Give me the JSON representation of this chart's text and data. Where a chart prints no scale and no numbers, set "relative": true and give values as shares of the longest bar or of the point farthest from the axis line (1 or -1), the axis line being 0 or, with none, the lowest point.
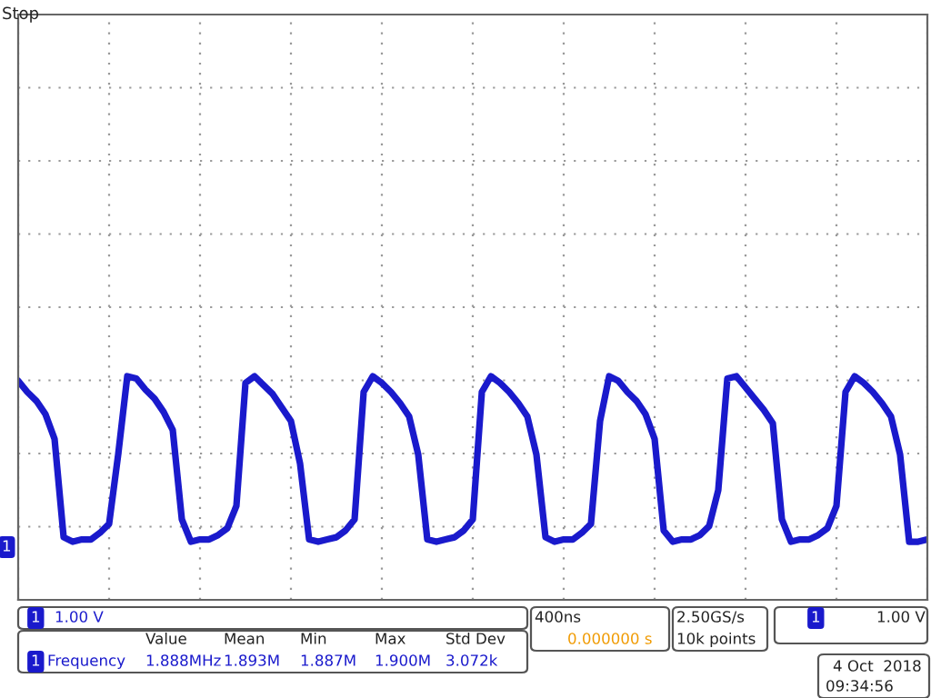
{
  "chart_data": {
    "type": "line",
    "title": "Stop",
    "relative": true,
    "grid": true,
    "legend": false,
    "marker": "none",
    "line_style": "solid",
    "categories": [
      null,
      null,
      null,
      null,
      null,
      null,
      null,
      null,
      null,
      null,
      null,
      null,
      null,
      null,
      null,
      null,
      null,
      null,
      null,
      null,
      null,
      null,
      null,
      null,
      null,
      null,
      null,
      null,
      null,
      null,
      null,
      null,
      null,
      null,
      null,
      null,
      null,
      null,
      null,
      null,
      null,
      null,
      null,
      null,
      null,
      null,
      null,
      null,
      null,
      null,
      null,
      null,
      null,
      null,
      null,
      null,
      null,
      null,
      null,
      null,
      null,
      null,
      null,
      null,
      null,
      null,
      null,
      null,
      null,
      null,
      null,
      null,
      null,
      null,
      null,
      null,
      null,
      null,
      null,
      null,
      null,
      null,
      null,
      null,
      null,
      null,
      null,
      null,
      null,
      null,
      null,
      null,
      null,
      null,
      null,
      null,
      null,
      null,
      null,
      null,
      null
    ],
    "series": [
      {
        "color": "#1a1acc",
        "values": [
          0.98,
          0.93,
          0.89,
          0.83,
          0.72,
          0.28,
          0.26,
          0.27,
          0.27,
          0.3,
          0.34,
          0.65,
          1,
          0.99,
          0.94,
          0.9,
          0.84,
          0.76,
          0.36,
          0.26,
          0.27,
          0.27,
          0.29,
          0.32,
          0.42,
          0.97,
          1,
          0.96,
          0.92,
          0.86,
          0.8,
          0.61,
          0.27,
          0.26,
          0.27,
          0.28,
          0.31,
          0.36,
          0.93,
          1,
          0.97,
          0.93,
          0.88,
          0.82,
          0.65,
          0.27,
          0.26,
          0.27,
          0.28,
          0.31,
          0.36,
          0.93,
          1,
          0.97,
          0.93,
          0.88,
          0.82,
          0.65,
          0.28,
          0.26,
          0.27,
          0.27,
          0.3,
          0.34,
          0.8,
          1,
          0.98,
          0.93,
          0.89,
          0.83,
          0.72,
          0.31,
          0.26,
          0.27,
          0.27,
          0.29,
          0.33,
          0.49,
          0.99,
          1,
          0.95,
          0.9,
          0.85,
          0.79,
          0.36,
          0.26,
          0.27,
          0.27,
          0.29,
          0.32,
          0.42,
          0.93,
          1,
          0.97,
          0.93,
          0.88,
          0.82,
          0.65,
          0.26,
          0.26,
          0.27
        ]
      }
    ],
    "annotations": [
      "1",
      "1",
      "1.00 V",
      "Value",
      "Mean",
      "Min",
      "Max",
      "Std Dev",
      "1",
      "Frequency",
      "1.888MHz",
      "1.893M",
      "1.887M",
      "1.900M",
      "3.072k",
      "400ns",
      "0.000000 s",
      "2.50GS/s",
      "10k points",
      "1",
      "1.00 V",
      "4 Oct  2018",
      "09:34:56"
    ]
  }
}
